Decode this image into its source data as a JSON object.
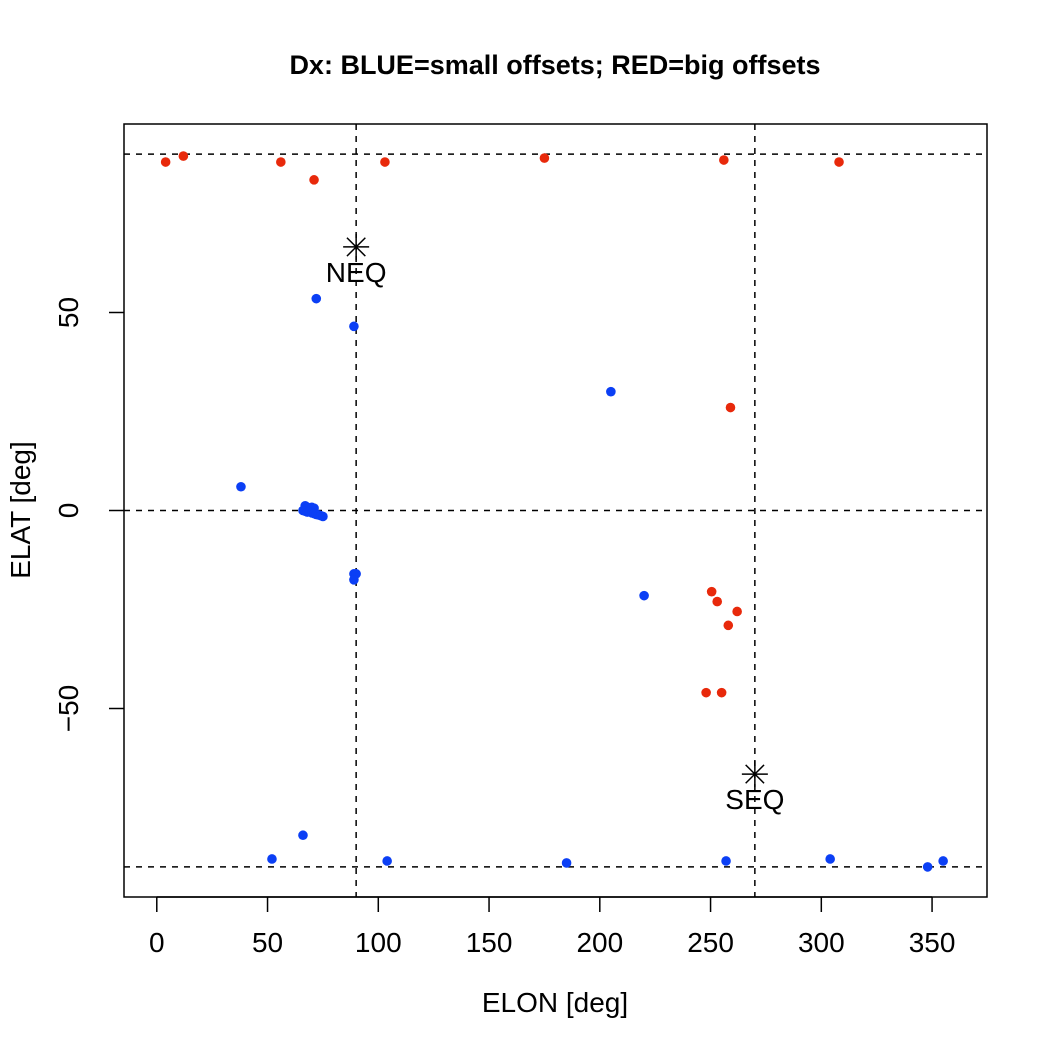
{
  "chart_data": {
    "type": "scatter",
    "title": "Dx: BLUE=small offsets; RED=big offsets",
    "xlabel": "ELON [deg]",
    "ylabel": "ELAT [deg]",
    "xlim": [
      -14.8,
      374.8
    ],
    "ylim": [
      -97.6,
      97.6
    ],
    "xticks": [
      0,
      50,
      100,
      150,
      200,
      250,
      300,
      350
    ],
    "yticks": [
      -50,
      0,
      50
    ],
    "grid": false,
    "colors": {
      "blue": "#0b3ff5",
      "red": "#e8290b",
      "axis": "#000000"
    },
    "reference_lines": {
      "vertical": [
        90,
        270
      ],
      "horizontal": [
        90,
        0,
        -90
      ],
      "style": "dashed"
    },
    "annotations": [
      {
        "text": "NEQ",
        "x": 90,
        "y": 66.56,
        "marker": "asterisk"
      },
      {
        "text": "SEQ",
        "x": 270,
        "y": -66.56,
        "marker": "asterisk"
      }
    ],
    "series": [
      {
        "color": "#e8290b",
        "points": [
          [
            4,
            88
          ],
          [
            12,
            89.5
          ],
          [
            56,
            88
          ],
          [
            71,
            83.5
          ],
          [
            103,
            88
          ],
          [
            175,
            89
          ],
          [
            256,
            88.5
          ],
          [
            308,
            88
          ],
          [
            259,
            26
          ],
          [
            250.5,
            -20.5
          ],
          [
            253,
            -23
          ],
          [
            262,
            -25.5
          ],
          [
            258,
            -29
          ],
          [
            248,
            -46
          ],
          [
            255,
            -46
          ]
        ]
      },
      {
        "color": "#0b3ff5",
        "points": [
          [
            72,
            53.5
          ],
          [
            89,
            46.5
          ],
          [
            205,
            30
          ],
          [
            38,
            6
          ],
          [
            67,
            1.2
          ],
          [
            68,
            0.8
          ],
          [
            70,
            0.8
          ],
          [
            71,
            0.6
          ],
          [
            66,
            0
          ],
          [
            67,
            -0.2
          ],
          [
            68,
            -0.4
          ],
          [
            69,
            -0.3
          ],
          [
            70,
            -0.6
          ],
          [
            71,
            -0.8
          ],
          [
            72,
            -1
          ],
          [
            73,
            -1.1
          ],
          [
            74,
            -1.3
          ],
          [
            75,
            -1.5
          ],
          [
            89,
            -16
          ],
          [
            90,
            -16
          ],
          [
            89,
            -17.5
          ],
          [
            220,
            -21.5
          ],
          [
            66,
            -82
          ],
          [
            52,
            -88
          ],
          [
            104,
            -88.5
          ],
          [
            185,
            -89
          ],
          [
            257,
            -88.5
          ],
          [
            304,
            -88
          ],
          [
            348,
            -90
          ],
          [
            355,
            -88.5
          ]
        ]
      }
    ]
  }
}
